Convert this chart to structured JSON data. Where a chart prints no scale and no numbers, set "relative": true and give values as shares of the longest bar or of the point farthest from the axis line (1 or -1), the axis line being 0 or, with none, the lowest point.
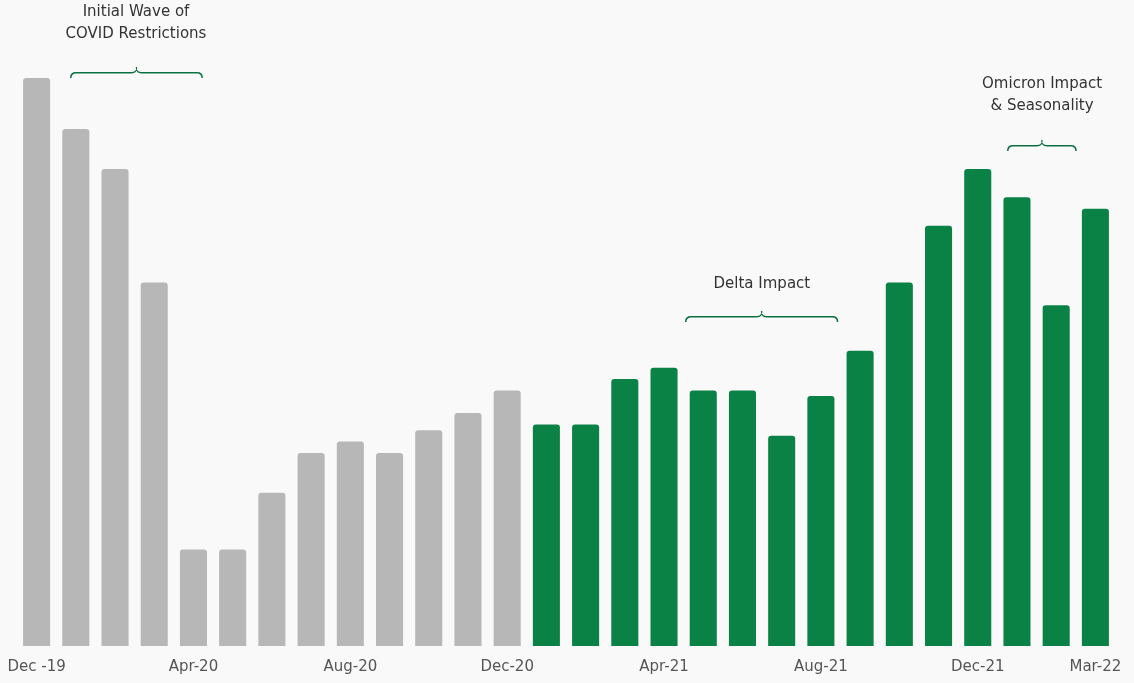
{
  "chart_data": {
    "type": "bar",
    "relative": true,
    "categories": [
      "Dec -19",
      null,
      null,
      null,
      "Apr-20",
      null,
      null,
      null,
      "Aug-20",
      null,
      null,
      null,
      "Dec-20",
      null,
      null,
      null,
      "Apr-21",
      null,
      null,
      null,
      "Aug-21",
      null,
      null,
      null,
      "Dec-21",
      null,
      null,
      "Mar-22"
    ],
    "values": [
      1,
      0.91,
      0.84,
      0.64,
      0.17,
      0.17,
      0.27,
      0.34,
      0.36,
      0.34,
      0.38,
      0.41,
      0.45,
      0.39,
      0.39,
      0.47,
      0.49,
      0.45,
      0.45,
      0.37,
      0.44,
      0.52,
      0.64,
      0.74,
      0.84,
      0.79,
      0.6,
      0.77
    ],
    "colors": [
      "#b7b7b7",
      "#b7b7b7",
      "#b7b7b7",
      "#b7b7b7",
      "#b7b7b7",
      "#b7b7b7",
      "#b7b7b7",
      "#b7b7b7",
      "#b7b7b7",
      "#b7b7b7",
      "#b7b7b7",
      "#b7b7b7",
      "#b7b7b7",
      "#0a8245",
      "#0a8245",
      "#0a8245",
      "#0a8245",
      "#0a8245",
      "#0a8245",
      "#0a8245",
      "#0a8245",
      "#0a8245",
      "#0a8245",
      "#0a8245",
      "#0a8245",
      "#0a8245",
      "#0a8245",
      "#0a8245"
    ],
    "annotations": [
      "Initial Wave of\nCOVID Restrictions",
      "Delta Impact",
      "Omicron Impact\n& Seasonality"
    ],
    "data_labels": false
  }
}
